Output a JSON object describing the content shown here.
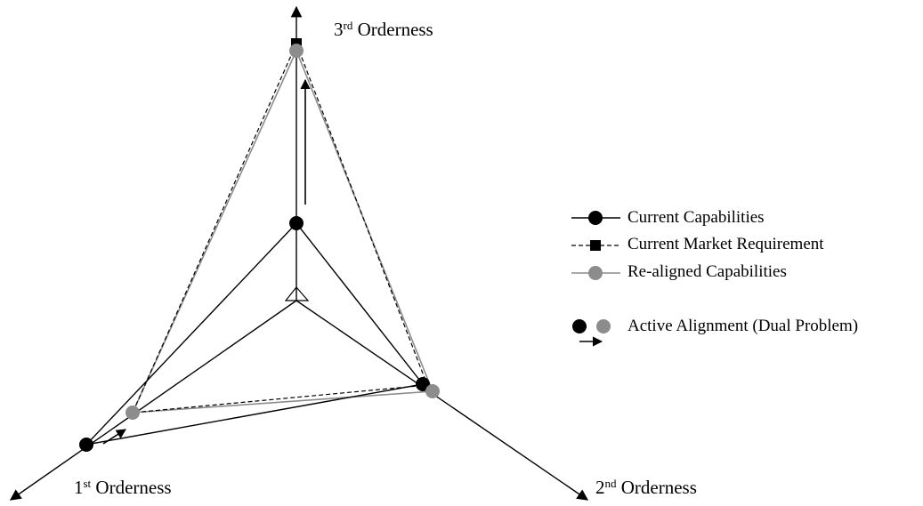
{
  "axes": {
    "third": {
      "base": "3",
      "sup": "rd",
      "rest": " Orderness"
    },
    "first": {
      "base": "1",
      "sup": "st",
      "rest": " Orderness"
    },
    "second": {
      "base": "2",
      "sup": "nd",
      "rest": " Orderness"
    }
  },
  "legend": {
    "current": "Current Capabilities",
    "market": "Current Market Requirement",
    "realigned": "Re-aligned Capabilities",
    "active": "Active Alignment (Dual Problem)"
  },
  "colors": {
    "current": "#000000",
    "market": "#000000",
    "realigned": "#8c8c8c",
    "axis": "#000000"
  }
}
